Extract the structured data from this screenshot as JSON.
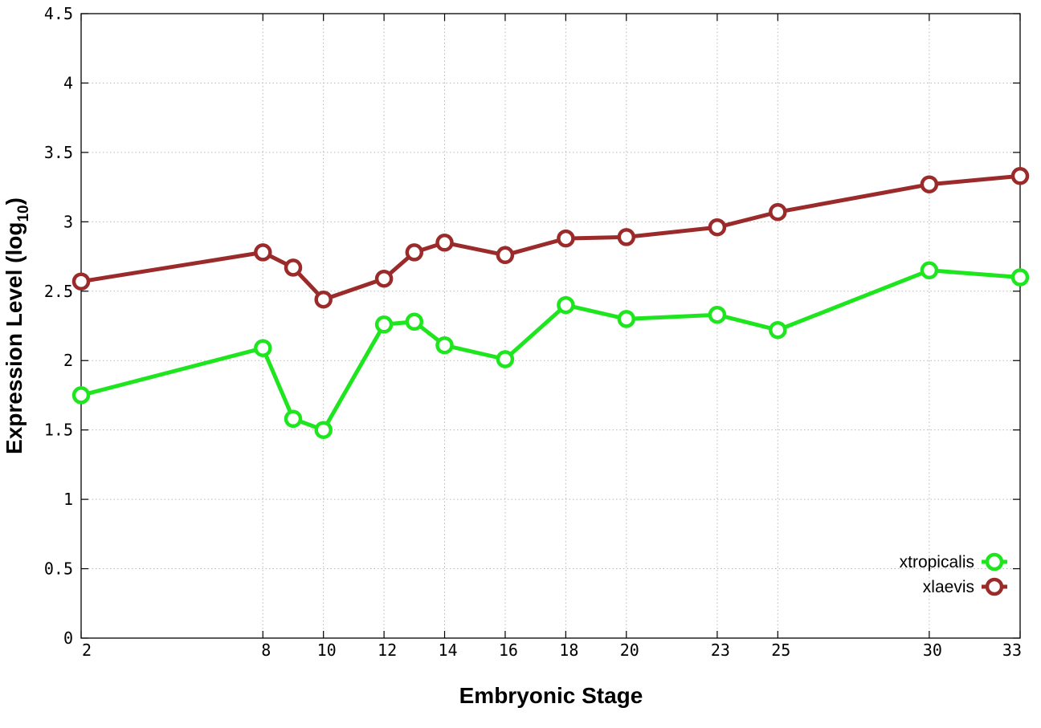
{
  "chart_data": {
    "type": "line",
    "xlabel": "Embryonic Stage",
    "ylabel_main": "Expression Level (log",
    "ylabel_sub": "10",
    "ylabel_close": ")",
    "x_ticks": [
      2,
      8,
      10,
      12,
      14,
      16,
      18,
      20,
      23,
      25,
      30,
      33
    ],
    "y_ticks": [
      "0",
      "0.5",
      "1",
      "1.5",
      "2",
      "2.5",
      "3",
      "3.5",
      "4",
      "4.5"
    ],
    "ylim": [
      0,
      4.5
    ],
    "grid": true,
    "legend_position": "bottom-right",
    "stages": [
      2,
      8,
      9,
      10,
      12,
      13,
      14,
      16,
      18,
      20,
      23,
      25,
      30,
      33
    ],
    "series": [
      {
        "name": "xtropicalis",
        "color": "#1ee61e",
        "values": [
          1.75,
          2.09,
          1.58,
          1.5,
          2.26,
          2.28,
          2.11,
          2.01,
          2.4,
          2.3,
          2.33,
          2.22,
          2.65,
          2.6
        ]
      },
      {
        "name": "xlaevis",
        "color": "#9b2b2b",
        "values": [
          2.57,
          2.78,
          2.67,
          2.44,
          2.59,
          2.78,
          2.85,
          2.76,
          2.88,
          2.89,
          2.96,
          3.07,
          3.27,
          3.33
        ]
      }
    ]
  }
}
